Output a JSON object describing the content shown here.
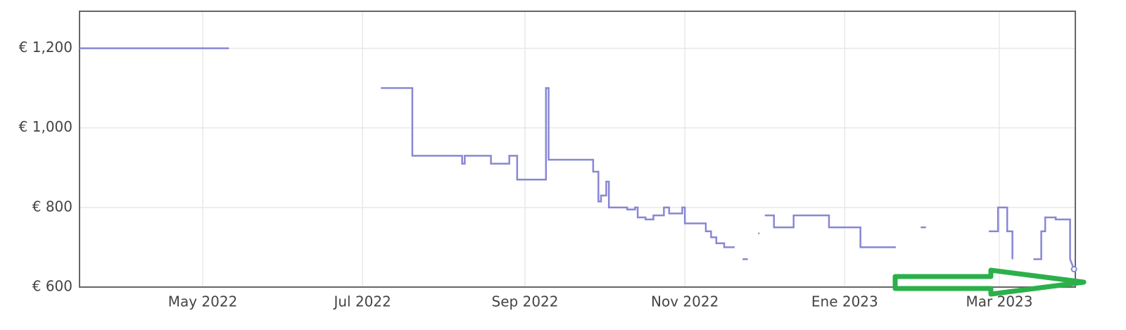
{
  "chart_data": {
    "type": "line",
    "x": [
      73,
      130,
      null,
      188,
      200,
      200,
      219,
      219,
      220,
      220,
      230,
      230,
      237,
      237,
      240,
      240,
      251,
      251,
      252,
      252,
      269,
      269,
      271,
      271,
      272,
      272,
      274,
      274,
      275,
      275,
      282,
      282,
      285,
      285,
      286,
      286,
      289,
      289,
      292,
      292,
      296,
      296,
      298,
      298,
      303,
      303,
      304,
      304,
      312,
      312,
      314,
      314,
      316,
      316,
      319,
      319,
      323,
      null,
      326,
      328,
      null,
      332,
      332.5,
      null,
      334.5,
      338,
      338,
      345.5,
      345.5,
      359,
      359,
      371,
      371,
      384.5,
      null,
      394,
      396,
      null,
      420,
      423.5,
      423.5,
      427,
      427,
      429,
      429,
      null,
      437,
      440,
      440,
      441.5,
      441.5,
      445.5,
      445.5,
      451,
      451,
      452.5
    ],
    "series": [
      {
        "color": "#8787d4",
        "values": [
          1200,
          1200,
          null,
          1100,
          1100,
          930,
          930,
          910,
          910,
          930,
          930,
          910,
          910,
          930,
          930,
          870,
          870,
          1100,
          1100,
          920,
          920,
          890,
          890,
          815,
          815,
          830,
          830,
          865,
          865,
          800,
          800,
          795,
          795,
          800,
          800,
          775,
          775,
          770,
          770,
          780,
          780,
          800,
          800,
          785,
          785,
          800,
          800,
          760,
          760,
          740,
          740,
          725,
          725,
          710,
          710,
          700,
          700,
          null,
          670,
          670,
          null,
          735,
          735,
          null,
          780,
          780,
          750,
          750,
          780,
          780,
          750,
          750,
          700,
          700,
          null,
          750,
          750,
          null,
          740,
          740,
          800,
          800,
          740,
          740,
          670,
          null,
          670,
          670,
          740,
          740,
          775,
          775,
          770,
          770,
          670,
          645
        ]
      }
    ],
    "xlim": [
      73,
      453
    ],
    "xticks": [
      {
        "value": 120,
        "label": "May 2022"
      },
      {
        "value": 181,
        "label": "Jul 2022"
      },
      {
        "value": 243,
        "label": "Sep 2022"
      },
      {
        "value": 304,
        "label": "Nov 2022"
      },
      {
        "value": 365,
        "label": "Ene 2023"
      },
      {
        "value": 424,
        "label": "Mar 2023"
      }
    ],
    "ylim": [
      600,
      1293
    ],
    "yticks": [
      {
        "value": 600,
        "label": "€ 600"
      },
      {
        "value": 800,
        "label": "€ 800"
      },
      {
        "value": 1000,
        "label": "€ 1,000"
      },
      {
        "value": 1200,
        "label": "€ 1,200"
      }
    ],
    "grid": true
  }
}
